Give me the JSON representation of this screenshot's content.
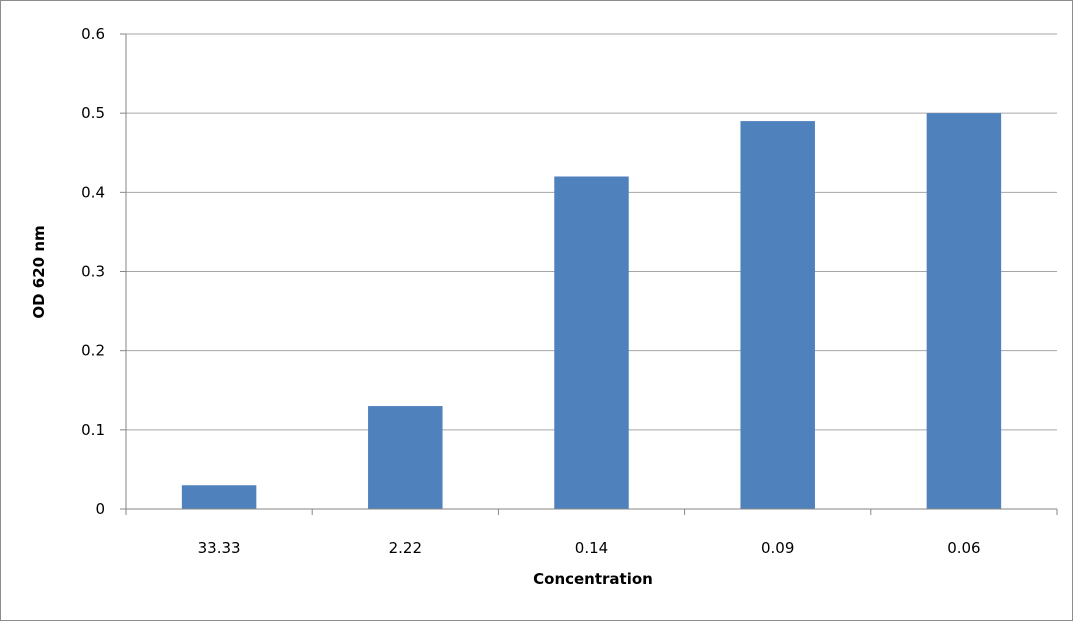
{
  "chart_data": {
    "type": "bar",
    "title": "",
    "xlabel": "Concentration",
    "ylabel": "OD 620 nm",
    "categories": [
      "33.33",
      "2.22",
      "0.14",
      "0.09",
      "0.06"
    ],
    "values": [
      0.03,
      0.13,
      0.42,
      0.49,
      0.5
    ],
    "ylim": [
      0,
      0.6
    ],
    "yticks": [
      "0",
      "0.1",
      "0.2",
      "0.3",
      "0.4",
      "0.5",
      "0.6"
    ],
    "ytick_values": [
      0,
      0.1,
      0.2,
      0.3,
      0.4,
      0.5,
      0.6
    ],
    "grid": true,
    "legend": "none",
    "bar_color": "#4f81bd",
    "grid_color": "#a6a6a6",
    "axis_color": "#868686"
  }
}
